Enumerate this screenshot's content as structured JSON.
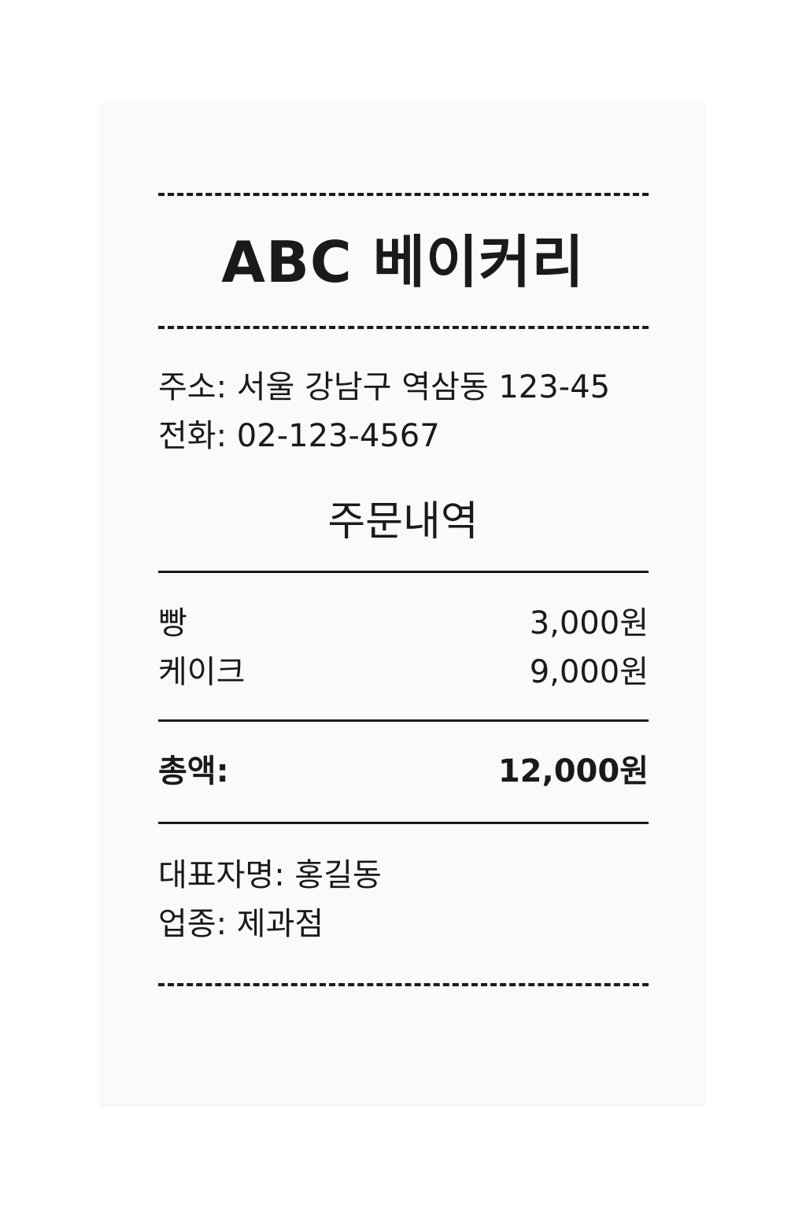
{
  "receipt": {
    "store_name": "ABC 베이커리",
    "address": "주소: 서울 강남구 역삼동 123-45",
    "phone": "전화: 02-123-4567",
    "order_title": "주문내역",
    "items": [
      {
        "name": "빵",
        "price": "3,000원"
      },
      {
        "name": "케이크",
        "price": "9,000원"
      }
    ],
    "total": {
      "label": "총액:",
      "value": "12,000원"
    },
    "owner": "대표자명: 홍길동",
    "business_type": "업종: 제과점"
  }
}
